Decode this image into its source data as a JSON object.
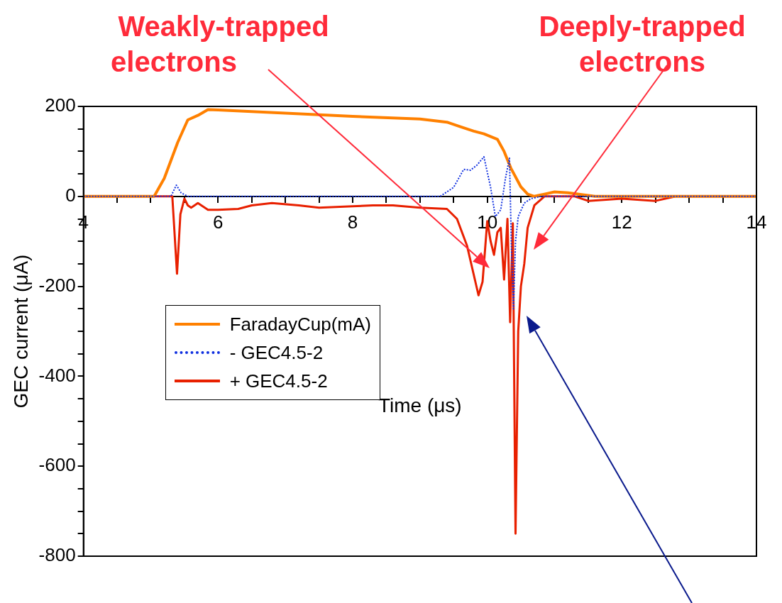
{
  "chart_data": {
    "type": "line",
    "xlabel": "Time (μs)",
    "ylabel": "GEC current (μA)",
    "xlim": [
      4,
      14
    ],
    "ylim": [
      -800,
      200
    ],
    "xticks": [
      4,
      {
        "value": 4.5,
        "label": null
      },
      {
        "value": 5,
        "label": null
      },
      {
        "value": 5.5,
        "label": null
      },
      6,
      {
        "value": 6.5,
        "label": null
      },
      {
        "value": 7,
        "label": null
      },
      {
        "value": 7.5,
        "label": null
      },
      8,
      {
        "value": 8.5,
        "label": null
      },
      {
        "value": 9,
        "label": null
      },
      {
        "value": 9.5,
        "label": null
      },
      10,
      {
        "value": 10.5,
        "label": null
      },
      {
        "value": 11,
        "label": null
      },
      {
        "value": 11.5,
        "label": null
      },
      12,
      {
        "value": 12.5,
        "label": null
      },
      {
        "value": 13,
        "label": null
      },
      {
        "value": 13.5,
        "label": null
      },
      14
    ],
    "yticks": [
      -800,
      {
        "value": -750,
        "label": null
      },
      {
        "value": -700,
        "label": null
      },
      {
        "value": -650,
        "label": null
      },
      -600,
      {
        "value": -550,
        "label": null
      },
      {
        "value": -500,
        "label": null
      },
      {
        "value": -450,
        "label": null
      },
      -400,
      {
        "value": -350,
        "label": null
      },
      {
        "value": -300,
        "label": null
      },
      {
        "value": -250,
        "label": null
      },
      -200,
      {
        "value": -150,
        "label": null
      },
      {
        "value": -100,
        "label": null
      },
      {
        "value": -50,
        "label": null
      },
      0,
      {
        "value": 50,
        "label": null
      },
      {
        "value": 100,
        "label": null
      },
      {
        "value": 150,
        "label": null
      },
      200
    ],
    "grid": false,
    "legend": "left",
    "marker": "none",
    "series": [
      {
        "name": "FaradayCup(mA)",
        "color": "#ff8000",
        "line_style": "solid",
        "x": [
          4,
          5.05,
          5.2,
          5.4,
          5.55,
          5.7,
          5.85,
          6.0,
          7.0,
          8.0,
          9.0,
          9.4,
          9.6,
          9.8,
          9.95,
          10.15,
          10.25,
          10.35,
          10.5,
          10.6,
          10.7,
          10.85,
          11.0,
          11.2,
          11.6,
          12,
          13,
          14
        ],
        "values": [
          0,
          0,
          40,
          120,
          170,
          180,
          193,
          192,
          185,
          178,
          172,
          165,
          155,
          145,
          139,
          127,
          100,
          63,
          21,
          5,
          0,
          5,
          10,
          8,
          0,
          0,
          0,
          0
        ]
      },
      {
        "name": "- GEC4.5-2",
        "color": "#1030e0",
        "line_style": "dotted",
        "x": [
          4,
          5.3,
          5.38,
          5.45,
          5.55,
          5.7,
          9.3,
          9.5,
          9.65,
          9.75,
          9.85,
          9.95,
          10.05,
          10.12,
          10.2,
          10.27,
          10.33,
          10.36,
          10.39,
          10.42,
          10.46,
          10.55,
          10.65,
          10.8,
          14
        ],
        "values": [
          0,
          0,
          25,
          8,
          0,
          0,
          0,
          20,
          60,
          58,
          70,
          88,
          20,
          -45,
          -30,
          40,
          85,
          -120,
          -250,
          -100,
          -45,
          -15,
          -5,
          0,
          0
        ]
      },
      {
        "name": "+ GEC4.5-2",
        "color": "#e82000",
        "line_style": "solid",
        "x": [
          4,
          5.32,
          5.39,
          5.44,
          5.5,
          5.55,
          5.6,
          5.7,
          5.85,
          6.0,
          6.3,
          6.5,
          6.8,
          7.2,
          7.5,
          8.0,
          8.3,
          8.6,
          9.0,
          9.4,
          9.55,
          9.7,
          9.87,
          9.93,
          10.0,
          10.05,
          10.1,
          10.15,
          10.2,
          10.25,
          10.3,
          10.34,
          10.38,
          10.42,
          10.46,
          10.5,
          10.55,
          10.6,
          10.7,
          10.85,
          11.3,
          11.5,
          12.0,
          12.5,
          12.8,
          14
        ],
        "values": [
          0,
          0,
          -172,
          -40,
          -5,
          -20,
          -25,
          -15,
          -30,
          -30,
          -28,
          -20,
          -15,
          -20,
          -25,
          -22,
          -20,
          -20,
          -25,
          -28,
          -50,
          -110,
          -220,
          -190,
          -55,
          -100,
          -130,
          -80,
          -70,
          -185,
          -50,
          -280,
          -60,
          -750,
          -300,
          -200,
          -150,
          -70,
          -20,
          0,
          0,
          -10,
          -5,
          -10,
          0,
          0
        ]
      }
    ],
    "annotations": [
      "Weakly-trapped electrons",
      "Deeply-trapped electrons"
    ]
  }
}
